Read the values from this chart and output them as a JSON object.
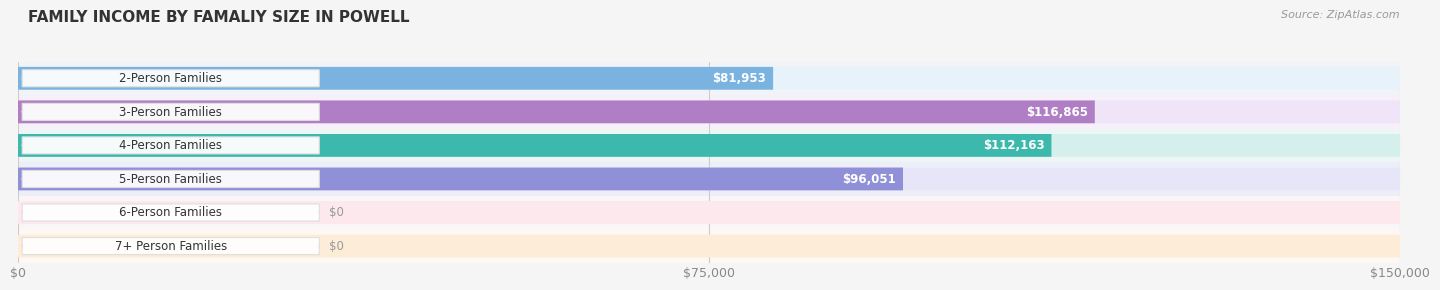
{
  "title": "FAMILY INCOME BY FAMALIY SIZE IN POWELL",
  "source": "Source: ZipAtlas.com",
  "categories": [
    "2-Person Families",
    "3-Person Families",
    "4-Person Families",
    "5-Person Families",
    "6-Person Families",
    "7+ Person Families"
  ],
  "values": [
    81953,
    116865,
    112163,
    96051,
    0,
    0
  ],
  "bar_colors": [
    "#7ab3e0",
    "#b07ec4",
    "#3db8ad",
    "#9090d8",
    "#f4a0b0",
    "#f5cfa0"
  ],
  "bar_bg_colors": [
    "#e8f2fb",
    "#f0e4f8",
    "#d5f0ec",
    "#e6e6f8",
    "#fde8ed",
    "#fdecd8"
  ],
  "row_bg_colors": [
    "#f0f4f8",
    "#f5f0f9",
    "#eef6f5",
    "#eeeef8",
    "#faf5f6",
    "#fdf8f3"
  ],
  "xmax": 150000,
  "xtick_labels": [
    "$0",
    "$75,000",
    "$150,000"
  ],
  "xtick_values": [
    0,
    75000,
    150000
  ],
  "background_color": "#f5f5f5",
  "label_fontsize": 8.5,
  "title_fontsize": 11,
  "value_fontsize": 8.5,
  "source_fontsize": 8
}
